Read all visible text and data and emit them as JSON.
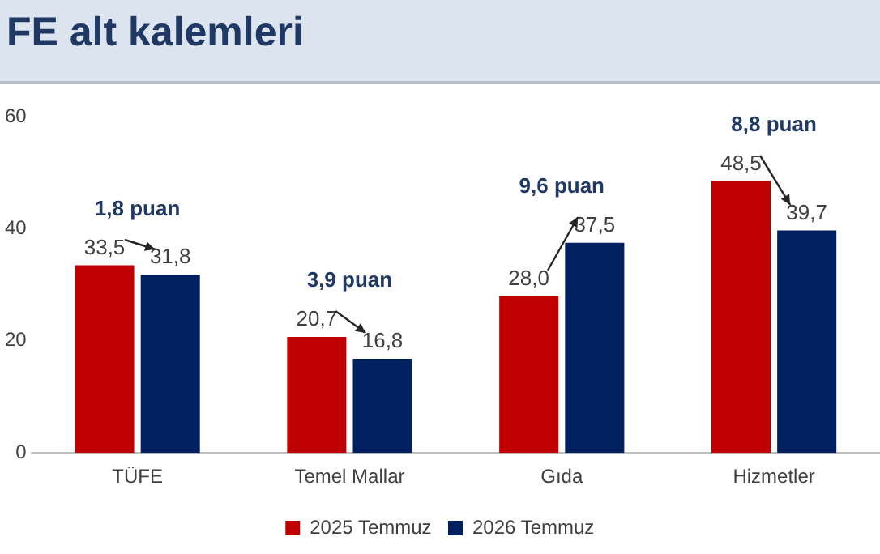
{
  "chart_data": {
    "type": "bar",
    "title": "FE alt kalemleri",
    "categories": [
      "TÜFE",
      "Temel Mallar",
      "Gıda",
      "Hizmetler"
    ],
    "series": [
      {
        "name": "2025 Temmuz",
        "color": "#c00000",
        "values": [
          33.5,
          20.7,
          28.0,
          48.5
        ],
        "value_labels": [
          "33,5",
          "20,7",
          "28,0",
          "48,5"
        ]
      },
      {
        "name": "2026 Temmuz",
        "color": "#002060",
        "values": [
          31.8,
          16.8,
          37.5,
          39.7
        ],
        "value_labels": [
          "31,8",
          "16,8",
          "37,5",
          "39,7"
        ]
      }
    ],
    "ylim": [
      0,
      60
    ],
    "yticks": [
      0,
      20,
      40,
      60
    ],
    "grid": false,
    "legend": "bottom",
    "annotations": [
      "1,8 puan",
      "3,9 puan",
      "9,6 puan",
      "8,8 puan"
    ]
  }
}
